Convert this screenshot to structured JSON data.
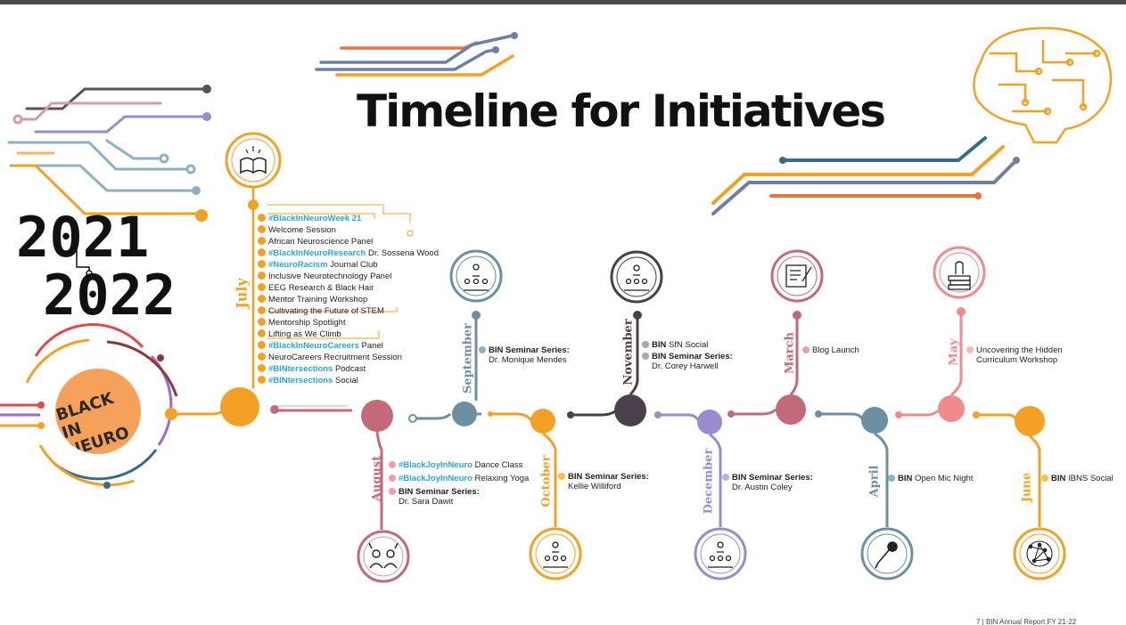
{
  "title": "Timeline for Initiatives",
  "years": {
    "start": "2021",
    "end": "2022"
  },
  "logo_text": "BLACK IN NEURO",
  "footer": "7 | BIN Annual Report FY 21-22",
  "colors": {
    "orange": "#f4a025",
    "rose": "#c2697a",
    "slate": "#6e8fa3",
    "dark": "#4a3f4a",
    "lavender": "#9a8ccc",
    "pink": "#f08a8f",
    "blue_highlight": "#29a5dd"
  },
  "months": {
    "july": "July",
    "august": "August",
    "september": "September",
    "october": "October",
    "november": "November",
    "december": "December",
    "march": "March",
    "april": "April",
    "may": "May",
    "june": "June"
  },
  "july_items": [
    {
      "tag": "#BlackInNeuroWeek 21",
      "rest": ""
    },
    {
      "tag": "",
      "rest": "Welcome Session"
    },
    {
      "tag": "",
      "rest": "African Neuroscience Panel"
    },
    {
      "tag": "#BlackInNeuroResearch",
      "rest": " Dr. Sossena Wood"
    },
    {
      "tag": "#NeuroRacism",
      "rest": " Journal Club"
    },
    {
      "tag": "",
      "rest": "Inclusive Neurotechnology Panel"
    },
    {
      "tag": "",
      "rest": "EEG Research & Black Hair"
    },
    {
      "tag": "",
      "rest": "Mentor Training Workshop"
    },
    {
      "tag": "",
      "rest": "Cultivating the Future of STEM"
    },
    {
      "tag": "",
      "rest": "Mentorship Spotlight"
    },
    {
      "tag": "",
      "rest": "Lifting as We Climb"
    },
    {
      "tag": "#BlackInNeuroCareers",
      "rest": " Panel"
    },
    {
      "tag": "",
      "rest": "NeuroCareers Recruitment Session"
    },
    {
      "tag": "#BINtersections",
      "rest": " Podcast"
    },
    {
      "tag": "#BINtersections",
      "rest": " Social"
    }
  ],
  "august": {
    "line1_tag": "#BlackJoyInNeuro",
    "line1_rest": " Dance Class",
    "line2_tag": "#BlackJoyInNeuro",
    "line2_rest": " Relaxing Yoga",
    "line3_bold": "BIN Seminar Series:",
    "line3_sub": "Dr. Sara Dawit"
  },
  "september": {
    "bold": "BIN Seminar Series:",
    "sub": "Dr. Monique Mendes"
  },
  "october": {
    "bold": "BIN Seminar Series:",
    "sub": "Kellie Williford"
  },
  "november": {
    "line1_bold": "BIN",
    "line1_rest": " SfN Social",
    "line2_bold": "BIN Seminar Series:",
    "line2_sub": "Dr. Corey Harwell"
  },
  "december": {
    "bold": "BIN Seminar Series:",
    "sub": "Dr. Austin Coley"
  },
  "march": {
    "text": "Blog Launch"
  },
  "april": {
    "bold": "BIN",
    "rest": " Open Mic Night"
  },
  "may": {
    "line1": "Uncovering the Hidden",
    "line2": "Curriculum Workshop"
  },
  "june": {
    "bold": "BIN",
    "rest": " IBNS Social"
  }
}
